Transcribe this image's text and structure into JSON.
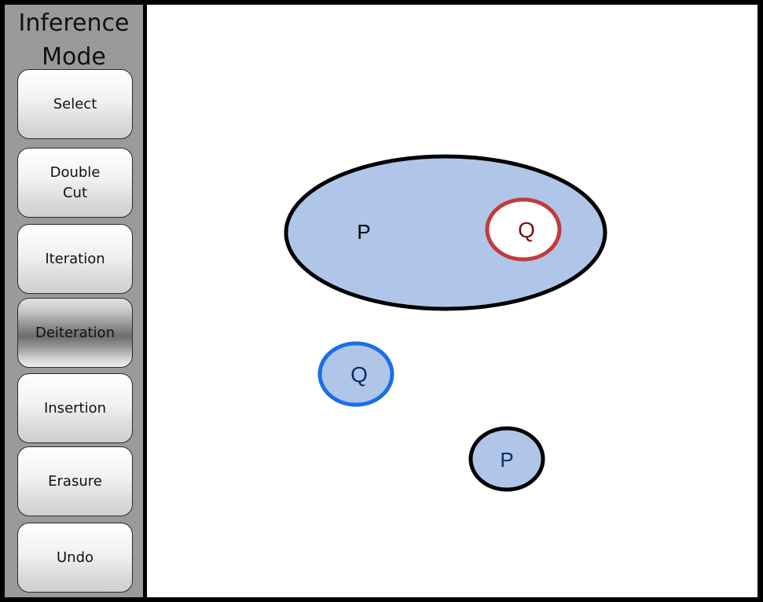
{
  "sidebar": {
    "title": "Inference\nMode",
    "buttons": [
      {
        "label": "Select",
        "active": false
      },
      {
        "label": "Double\nCut",
        "active": false
      },
      {
        "label": "Iteration",
        "active": false
      },
      {
        "label": "Deiteration",
        "active": true
      },
      {
        "label": "Insertion",
        "active": false
      },
      {
        "label": "Erasure",
        "active": false
      },
      {
        "label": "Undo",
        "active": false
      }
    ]
  },
  "canvas": {
    "cut_fill_color": "#b0c6e8",
    "outline_color": "#000000",
    "selected_outline_color": "#1a6ee8",
    "target_outline_color": "#c43a3a",
    "labels": {
      "outer_cut_letter": "P",
      "nested_cut_letter": "Q",
      "standalone_q_letter": "Q",
      "standalone_p_letter": "P"
    }
  }
}
